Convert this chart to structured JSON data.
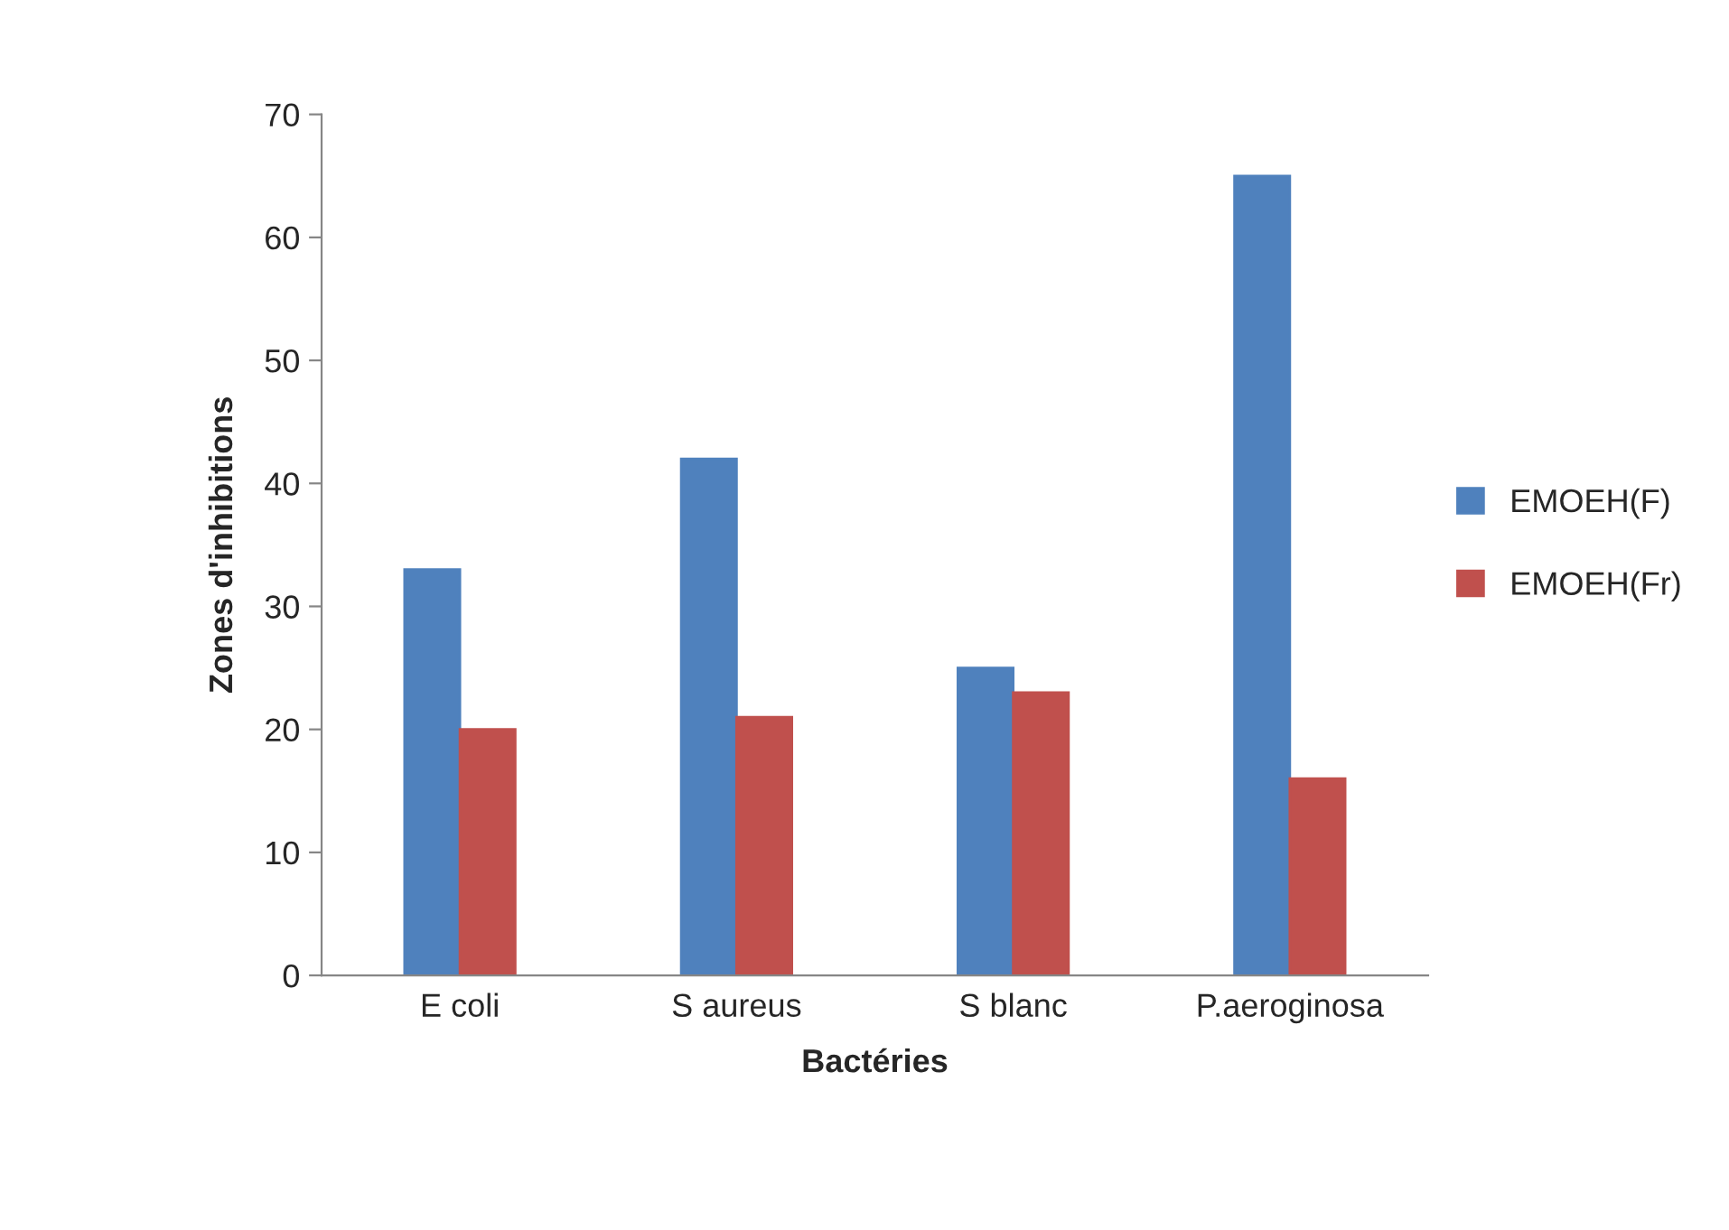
{
  "chart_data": {
    "type": "bar",
    "xlabel": "Bactéries",
    "ylabel": "Zones d'inhibitions",
    "categories": [
      "E coli",
      "S aureus",
      "S blanc",
      "P.aeroginosa"
    ],
    "series": [
      {
        "name": "EMOEH(F)",
        "color": "#4f81bd",
        "values": [
          33,
          42,
          25,
          65
        ]
      },
      {
        "name": "EMOEH(Fr)",
        "color": "#c0504d",
        "values": [
          20,
          21,
          23,
          16
        ]
      }
    ],
    "ylim": [
      0,
      70
    ],
    "yticks": [
      0,
      10,
      20,
      30,
      40,
      50,
      60,
      70
    ],
    "grid": false,
    "legend": "right"
  }
}
